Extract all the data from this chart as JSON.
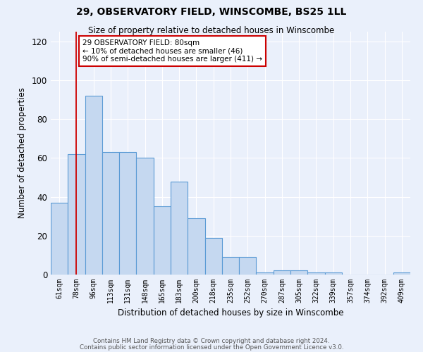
{
  "title1": "29, OBSERVATORY FIELD, WINSCOMBE, BS25 1LL",
  "title2": "Size of property relative to detached houses in Winscombe",
  "xlabel": "Distribution of detached houses by size in Winscombe",
  "ylabel": "Number of detached properties",
  "bar_labels": [
    "61sqm",
    "78sqm",
    "96sqm",
    "113sqm",
    "131sqm",
    "148sqm",
    "165sqm",
    "183sqm",
    "200sqm",
    "218sqm",
    "235sqm",
    "252sqm",
    "270sqm",
    "287sqm",
    "305sqm",
    "322sqm",
    "339sqm",
    "357sqm",
    "374sqm",
    "392sqm",
    "409sqm"
  ],
  "bar_values": [
    37,
    62,
    92,
    63,
    63,
    60,
    35,
    48,
    29,
    19,
    9,
    9,
    1,
    2,
    2,
    1,
    1,
    0,
    0,
    0,
    1
  ],
  "bar_color": "#c5d8f0",
  "bar_edge_color": "#5b9bd5",
  "red_line_x": 1,
  "ylim": [
    0,
    125
  ],
  "yticks": [
    0,
    20,
    40,
    60,
    80,
    100,
    120
  ],
  "annotation_text": "29 OBSERVATORY FIELD: 80sqm\n← 10% of detached houses are smaller (46)\n90% of semi-detached houses are larger (411) →",
  "annotation_box_color": "#ffffff",
  "annotation_box_edge": "#cc0000",
  "footer1": "Contains HM Land Registry data © Crown copyright and database right 2024.",
  "footer2": "Contains public sector information licensed under the Open Government Licence v3.0.",
  "bg_color": "#eaf0fb",
  "grid_color": "#ffffff"
}
